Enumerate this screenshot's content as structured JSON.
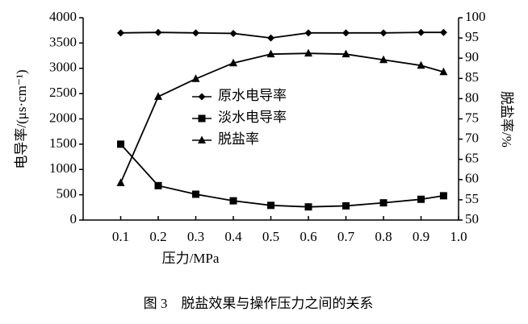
{
  "chart_data": {
    "type": "line",
    "x": [
      0.1,
      0.2,
      0.3,
      0.4,
      0.5,
      0.6,
      0.7,
      0.8,
      0.9,
      0.96
    ],
    "series": [
      {
        "name": "原水电导率",
        "color": "#000000",
        "marker": "diamond",
        "axis": "y",
        "values": [
          3700,
          3710,
          3700,
          3690,
          3600,
          3700,
          3700,
          3700,
          3710,
          3710
        ]
      },
      {
        "name": "淡水电导率",
        "color": "#000000",
        "marker": "square",
        "axis": "y",
        "values": [
          1500,
          680,
          510,
          380,
          290,
          260,
          280,
          340,
          410,
          480
        ]
      },
      {
        "name": "脱盐率",
        "color": "#000000",
        "marker": "triangle",
        "axis": "y2",
        "values": [
          59.2,
          80.5,
          84.9,
          88.8,
          91.0,
          91.2,
          91.0,
          89.6,
          88.2,
          86.6
        ]
      }
    ],
    "xlim": [
      0,
      1
    ],
    "xticks": [
      0.1,
      0.2,
      0.3,
      0.4,
      0.5,
      0.6,
      0.7,
      0.8,
      0.9,
      {
        "value": 1,
        "label": "1.0"
      }
    ],
    "ylim": [
      0,
      4000
    ],
    "yticks": [
      0,
      500,
      1000,
      1500,
      2000,
      2500,
      3000,
      3500,
      4000
    ],
    "y2lim": [
      50,
      100
    ],
    "y2ticks": [
      50,
      55,
      60,
      65,
      70,
      75,
      80,
      85,
      90,
      95,
      100
    ],
    "xlabel": "压力/MPa",
    "ylabel": "电导率/(μs·cm⁻¹)",
    "y2label": "脱盐率/%",
    "legend": "center",
    "caption": "图 3　脱盐效果与操作压力之间的关系"
  }
}
